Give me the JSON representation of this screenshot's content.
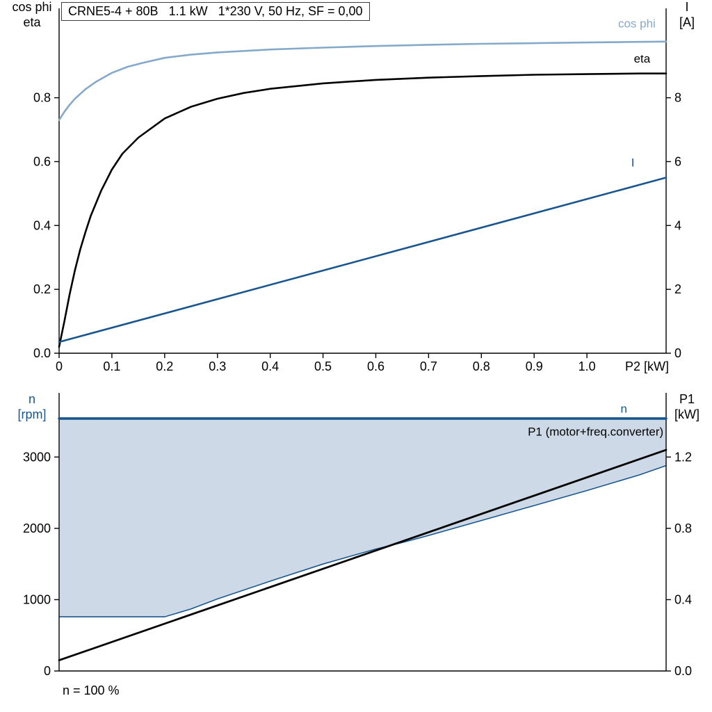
{
  "colors": {
    "black": "#000000",
    "dark_blue": "#1a568d",
    "light_blue": "#85a9c9",
    "fill_blue": "#cdd9e6",
    "axis": "#000000"
  },
  "chart_data": [
    {
      "type": "line",
      "id": "motor-performance",
      "title": "CRNE5-4 + 80B   1.1 kW   1*230 V, 50 Hz, SF = 0,00",
      "xlim": [
        0,
        1.15
      ],
      "x_ticks": [
        0,
        0.1,
        0.2,
        0.3,
        0.4,
        0.5,
        0.6,
        0.7,
        0.8,
        0.9,
        1.0
      ],
      "x_tick_labels": [
        "0",
        "0.1",
        "0.2",
        "0.3",
        "0.4",
        "0.5",
        "0.6",
        "0.7",
        "0.8",
        "0.9",
        "1.0"
      ],
      "x_axis_label": "P2 [kW]",
      "left_axis": {
        "title_lines": [
          "cos phi",
          "eta"
        ],
        "title_color": "black",
        "lim": [
          0,
          1.08
        ],
        "ticks": [
          0,
          0.2,
          0.4,
          0.6,
          0.8
        ],
        "tick_labels": [
          "0.0",
          "0.2",
          "0.4",
          "0.6",
          "0.8"
        ]
      },
      "right_axis": {
        "title_lines": [
          "I",
          "[A]"
        ],
        "title_color": "black",
        "lim": [
          0,
          10.8
        ],
        "ticks": [
          0,
          2,
          4,
          6,
          8
        ],
        "tick_labels": [
          "0",
          "2",
          "4",
          "6",
          "8"
        ]
      },
      "series": [
        {
          "name": "cos phi",
          "axis": "left",
          "color": "light_blue",
          "width": 2.6,
          "x": [
            0,
            0.01,
            0.02,
            0.03,
            0.05,
            0.07,
            0.1,
            0.13,
            0.16,
            0.2,
            0.25,
            0.3,
            0.4,
            0.5,
            0.6,
            0.7,
            0.8,
            0.9,
            1.0,
            1.1,
            1.15
          ],
          "y": [
            0.73,
            0.756,
            0.778,
            0.797,
            0.827,
            0.85,
            0.878,
            0.897,
            0.91,
            0.925,
            0.935,
            0.942,
            0.951,
            0.957,
            0.962,
            0.966,
            0.969,
            0.971,
            0.973,
            0.975,
            0.976
          ],
          "label": {
            "text": "cos phi",
            "x": 1.13,
            "y": 1.02,
            "anchor": "end",
            "color": "light_blue"
          }
        },
        {
          "name": "eta",
          "axis": "left",
          "color": "black",
          "width": 2.6,
          "x": [
            0,
            0.005,
            0.01,
            0.02,
            0.03,
            0.04,
            0.05,
            0.06,
            0.08,
            0.1,
            0.12,
            0.15,
            0.2,
            0.25,
            0.3,
            0.35,
            0.4,
            0.5,
            0.6,
            0.7,
            0.8,
            0.9,
            1.0,
            1.1,
            1.15
          ],
          "y": [
            0.02,
            0.06,
            0.1,
            0.185,
            0.26,
            0.325,
            0.38,
            0.43,
            0.51,
            0.575,
            0.625,
            0.675,
            0.735,
            0.772,
            0.797,
            0.815,
            0.828,
            0.845,
            0.856,
            0.863,
            0.868,
            0.872,
            0.874,
            0.876,
            0.876
          ],
          "label": {
            "text": "eta",
            "x": 1.12,
            "y": 0.91,
            "anchor": "end",
            "color": "black"
          }
        },
        {
          "name": "I",
          "axis": "right",
          "color": "dark_blue",
          "width": 2.6,
          "x": [
            0,
            1.15
          ],
          "y": [
            0.35,
            5.5
          ],
          "label": {
            "text": "I",
            "x": 1.09,
            "y": 5.85,
            "anchor": "end",
            "color": "dark_blue"
          }
        }
      ]
    },
    {
      "type": "line",
      "id": "speed-power",
      "xlim": [
        0,
        1.15
      ],
      "x_ticks": [],
      "x_tick_labels": [],
      "x_axis_label": "",
      "left_axis": {
        "title_lines": [
          "n",
          "[rpm]"
        ],
        "title_color": "dark_blue",
        "lim": [
          0,
          3900
        ],
        "ticks": [
          0,
          1000,
          2000,
          3000
        ],
        "tick_labels": [
          "0",
          "1000",
          "2000",
          "3000"
        ]
      },
      "right_axis": {
        "title_lines": [
          "P1",
          "[kW]"
        ],
        "title_color": "black",
        "lim": [
          0,
          1.56
        ],
        "ticks": [
          0,
          0.4,
          0.8,
          1.2
        ],
        "tick_labels": [
          "0.0",
          "0.4",
          "0.8",
          "1.2"
        ]
      },
      "fill": {
        "name": "operating-range",
        "color": "fill_blue",
        "border_color": "dark_blue",
        "upper": 3540,
        "boundary_x": [
          0,
          0.2,
          0.25,
          0.3,
          0.4,
          0.5,
          0.6,
          0.65,
          0.7,
          0.8,
          0.9,
          1.0,
          1.1,
          1.15
        ],
        "boundary_y": [
          760,
          760,
          870,
          1010,
          1260,
          1500,
          1710,
          1800,
          1900,
          2110,
          2320,
          2530,
          2750,
          2880
        ]
      },
      "series": [
        {
          "name": "n",
          "axis": "left",
          "color": "dark_blue",
          "width": 3.6,
          "x": [
            0,
            1.15
          ],
          "y": [
            3540,
            3540
          ],
          "label": {
            "text": "n",
            "x": 1.07,
            "y": 3620,
            "anchor": "middle",
            "color": "dark_blue"
          }
        },
        {
          "name": "P1 (motor+freq.converter)",
          "axis": "right",
          "color": "black",
          "width": 2.8,
          "x": [
            0,
            1.15
          ],
          "y": [
            0.06,
            1.24
          ],
          "label": {
            "text": "P1 (motor+freq.converter)",
            "x": 1.145,
            "y": 1.32,
            "anchor": "end",
            "color": "black"
          }
        }
      ],
      "footnote": "n = 100 %"
    }
  ]
}
